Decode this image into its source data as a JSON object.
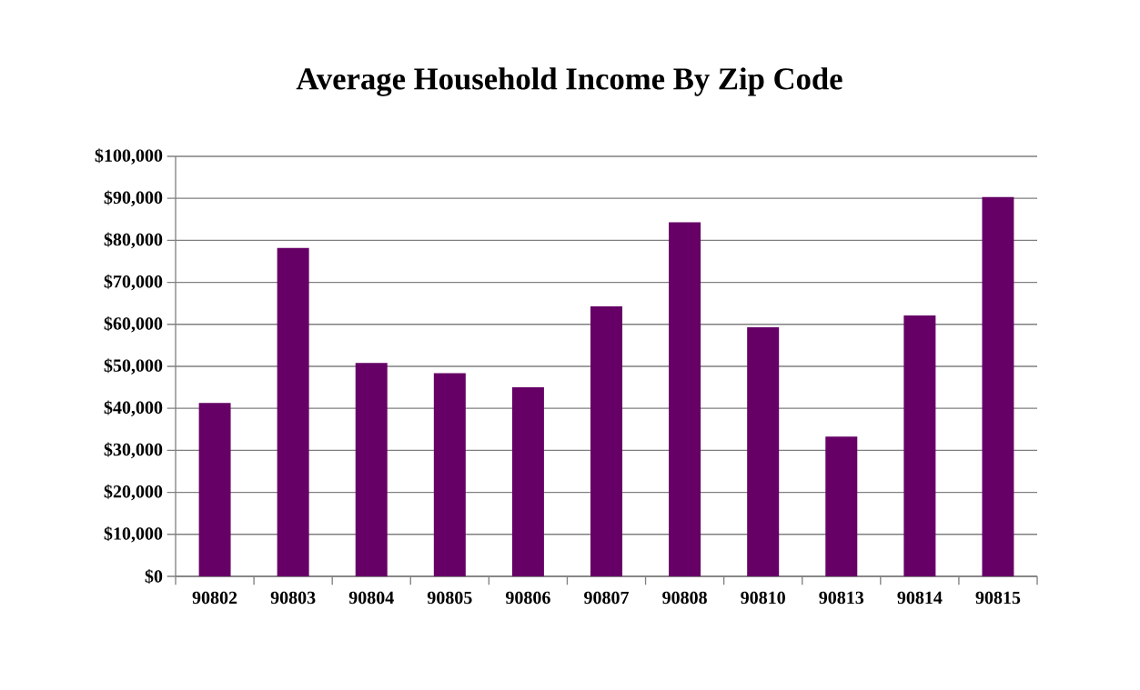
{
  "chart_data": {
    "type": "bar",
    "title": "Average Household Income By Zip Code",
    "categories": [
      "90802",
      "90803",
      "90804",
      "90805",
      "90806",
      "90807",
      "90808",
      "90810",
      "90813",
      "90814",
      "90815"
    ],
    "values": [
      41300,
      78200,
      50800,
      48400,
      45000,
      64300,
      84300,
      59300,
      33300,
      62100,
      90300
    ],
    "color": "#660066",
    "ylim": [
      0,
      100000
    ],
    "yticks": [
      {
        "value": 0,
        "label": "$0"
      },
      {
        "value": 10000,
        "label": "$10,000"
      },
      {
        "value": 20000,
        "label": "$20,000"
      },
      {
        "value": 30000,
        "label": "$30,000"
      },
      {
        "value": 40000,
        "label": "$40,000"
      },
      {
        "value": 50000,
        "label": "$50,000"
      },
      {
        "value": 60000,
        "label": "$60,000"
      },
      {
        "value": 70000,
        "label": "$70,000"
      },
      {
        "value": 80000,
        "label": "$80,000"
      },
      {
        "value": 90000,
        "label": "$90,000"
      },
      {
        "value": 100000,
        "label": "$100,000"
      }
    ],
    "grid": "y"
  }
}
